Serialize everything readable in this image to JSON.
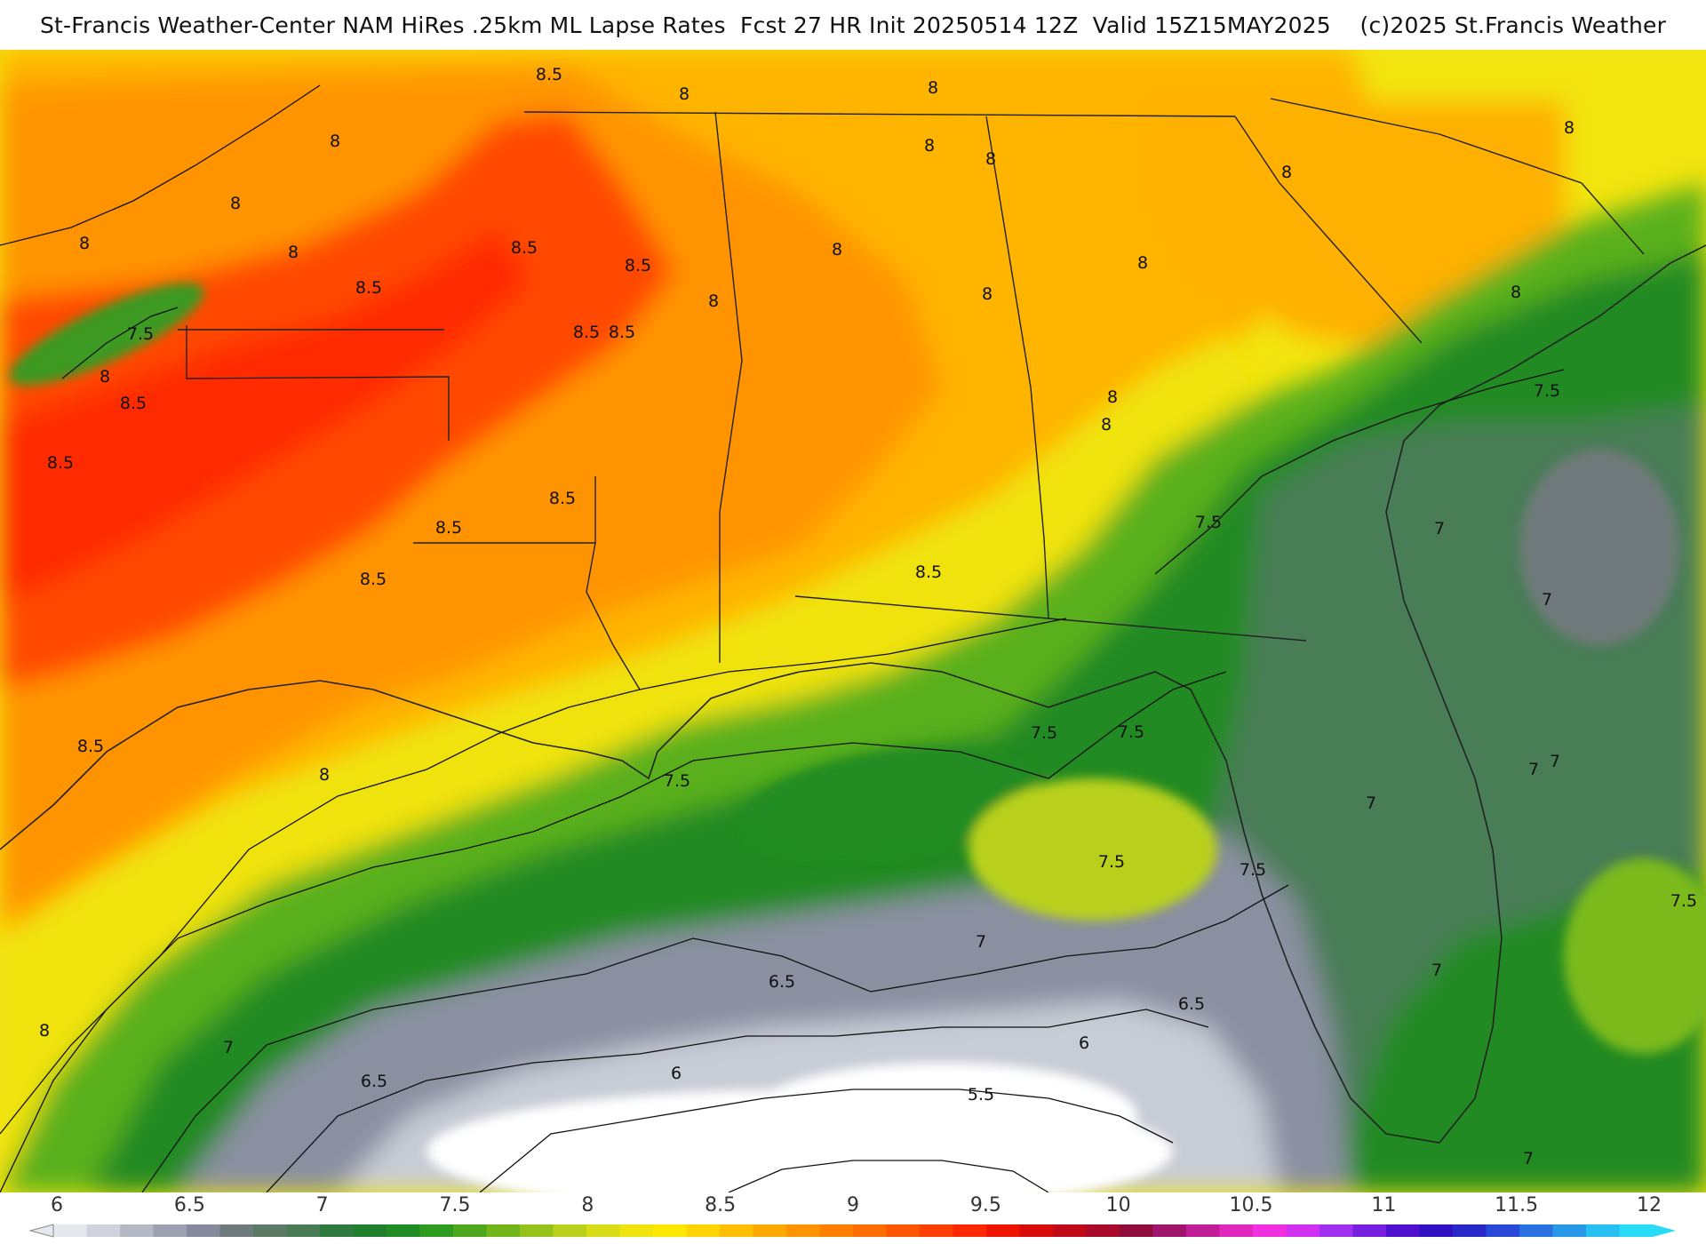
{
  "title": "St-Francis Weather-Center NAM HiRes .25km ML Lapse Rates  Fcst 27 HR Init 20250514 12Z  Valid 15Z15MAY2025    (c)2025 St.Francis Weather",
  "colorbar": {
    "ticks": [
      "6",
      "6.5",
      "7",
      "7.5",
      "8",
      "8.5",
      "9",
      "9.5",
      "10",
      "10.5",
      "11",
      "11.5",
      "12"
    ],
    "colors": [
      "#e6e8ee",
      "#d0d3dc",
      "#b5b9c6",
      "#9ca1b1",
      "#858b9c",
      "#6f7a7c",
      "#5b7a66",
      "#477a55",
      "#2f7a3e",
      "#1f7f2e",
      "#208c24",
      "#2f9b1f",
      "#4ea81e",
      "#72b51a",
      "#95c21a",
      "#b8d01a",
      "#d8dc14",
      "#efe40c",
      "#ffe800",
      "#ffd400",
      "#ffbe00",
      "#ffa800",
      "#ff9400",
      "#ff8000",
      "#ff6c00",
      "#ff5500",
      "#ff3f00",
      "#ff2800",
      "#f01400",
      "#d80a0a",
      "#c00a1a",
      "#a80a2a",
      "#900a3a",
      "#a0146e",
      "#c01e96",
      "#e028be",
      "#f030e0",
      "#d030f0",
      "#a030f0",
      "#7820e0",
      "#5010d0",
      "#3010c0",
      "#2828c8",
      "#2848d8",
      "#2870e0",
      "#2898e8",
      "#28c0f0",
      "#28dcf8"
    ]
  },
  "contour_labels": [
    {
      "text": "8.5"
    },
    {
      "text": "8"
    },
    {
      "text": "8"
    },
    {
      "text": "8"
    },
    {
      "text": "8"
    },
    {
      "text": "8"
    },
    {
      "text": "8"
    },
    {
      "text": "8"
    },
    {
      "text": "8.5"
    },
    {
      "text": "8.5"
    },
    {
      "text": "8.5"
    },
    {
      "text": "8.5"
    },
    {
      "text": "8.5"
    },
    {
      "text": "8"
    },
    {
      "text": "8"
    },
    {
      "text": "8"
    },
    {
      "text": "8"
    },
    {
      "text": "8"
    },
    {
      "text": "8"
    },
    {
      "text": "8"
    },
    {
      "text": "8.5"
    },
    {
      "text": "7.5"
    },
    {
      "text": "8"
    },
    {
      "text": "8.5"
    },
    {
      "text": "8.5"
    },
    {
      "text": "8.5"
    },
    {
      "text": "8.5"
    },
    {
      "text": "8.5"
    },
    {
      "text": "8"
    },
    {
      "text": "8"
    },
    {
      "text": "8"
    },
    {
      "text": "7.5"
    },
    {
      "text": "7.5"
    },
    {
      "text": "7"
    },
    {
      "text": "7"
    },
    {
      "text": "8.5"
    },
    {
      "text": "8"
    },
    {
      "text": "7.5"
    },
    {
      "text": "7.5"
    },
    {
      "text": "7.5"
    },
    {
      "text": "7.5"
    },
    {
      "text": "7"
    },
    {
      "text": "7"
    },
    {
      "text": "7.5"
    },
    {
      "text": "7"
    },
    {
      "text": "7"
    },
    {
      "text": "6.5"
    },
    {
      "text": "6.5"
    },
    {
      "text": "8"
    },
    {
      "text": "7"
    },
    {
      "text": "6.5"
    },
    {
      "text": "6"
    },
    {
      "text": "6"
    },
    {
      "text": "5.5"
    },
    {
      "text": "7"
    },
    {
      "text": "7"
    },
    {
      "text": "7.5"
    }
  ]
}
